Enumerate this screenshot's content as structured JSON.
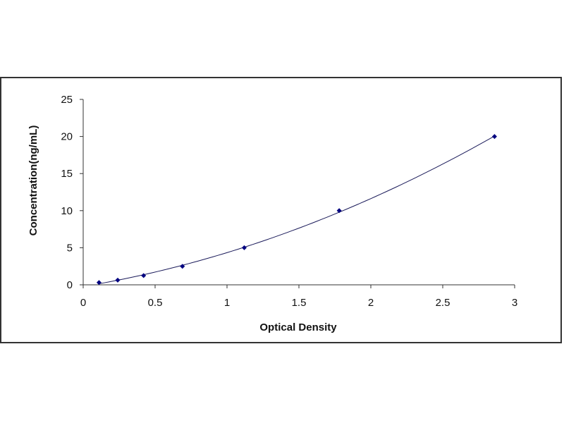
{
  "chart_data": {
    "type": "scatter",
    "title": "",
    "xlabel": "Optical Density",
    "ylabel": "Concentration(ng/mL)",
    "xlim": [
      0,
      3
    ],
    "ylim": [
      0,
      25
    ],
    "x_ticks": [
      "0",
      "0.5",
      "1",
      "1.5",
      "2",
      "2.5",
      "3"
    ],
    "y_ticks": [
      "0",
      "5",
      "10",
      "15",
      "20",
      "25"
    ],
    "grid": false,
    "legend": "none",
    "series": [
      {
        "x": [
          0.11,
          0.24,
          0.42,
          0.69,
          1.12,
          1.78,
          2.86
        ],
        "y": [
          0.31,
          0.63,
          1.25,
          2.5,
          5,
          10,
          20
        ],
        "color": "#000080",
        "fit_line": true
      }
    ],
    "line_color": "#1a1a5a",
    "axis_color": "#333333"
  }
}
